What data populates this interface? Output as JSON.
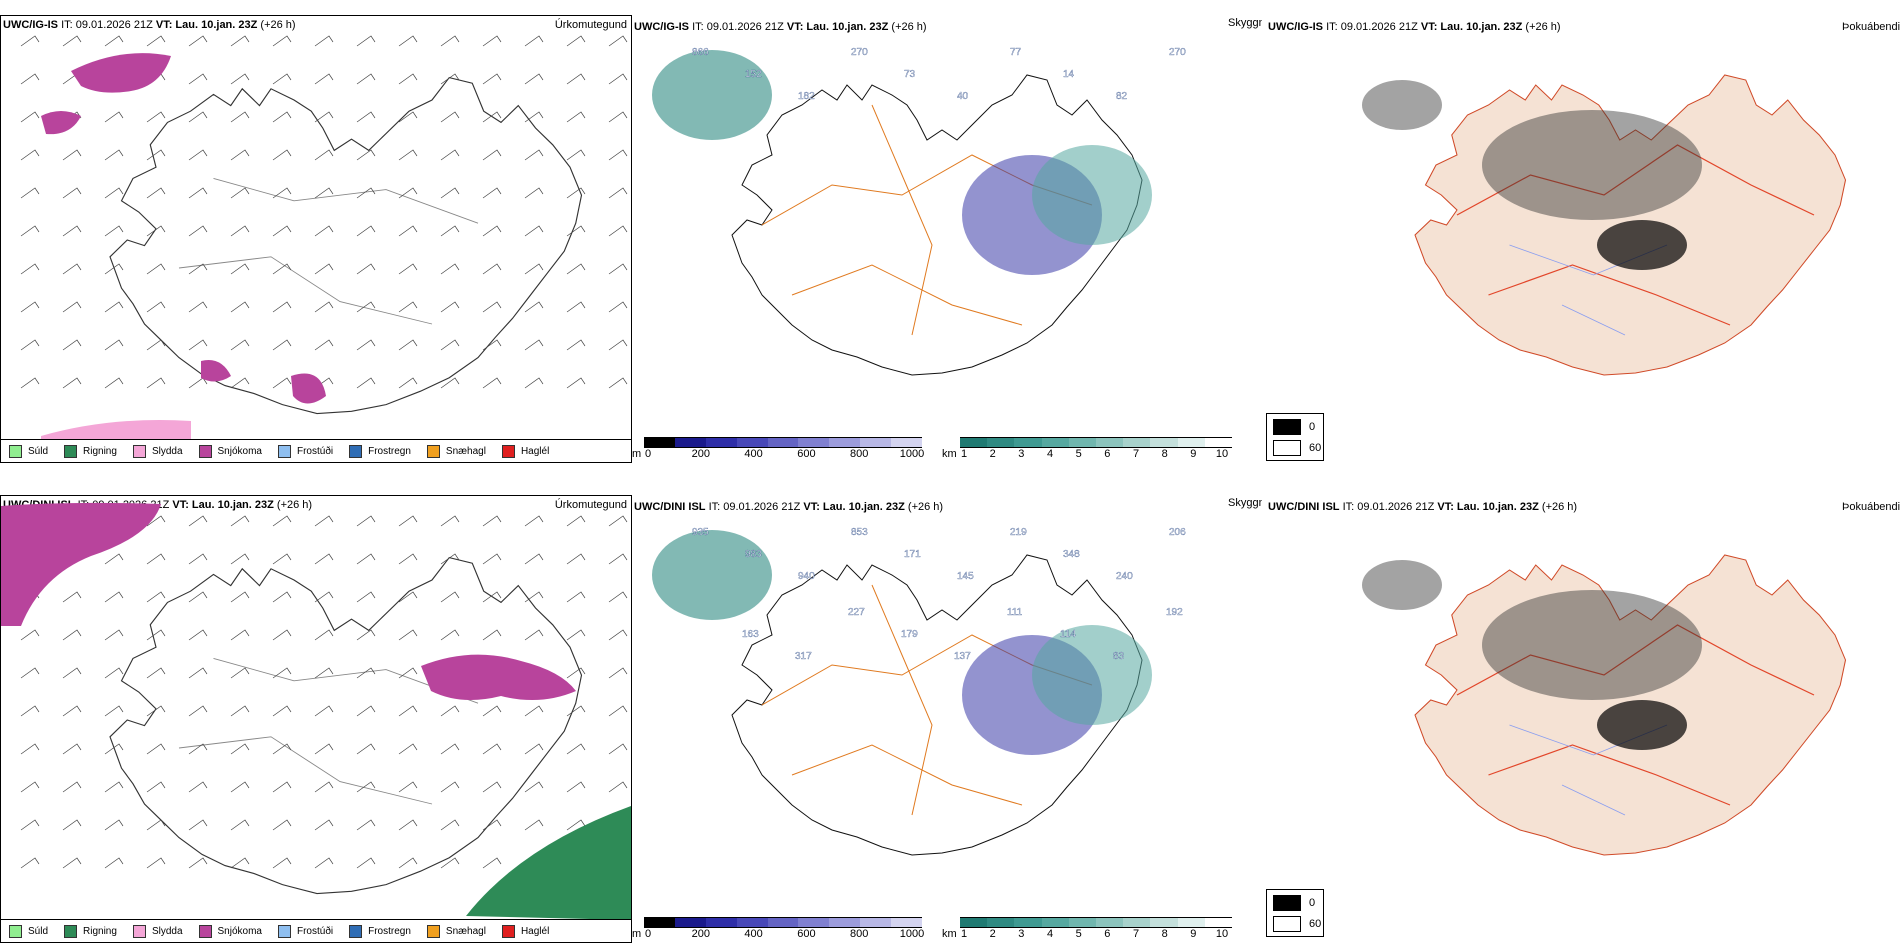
{
  "rows": [
    {
      "model": "UWC/IG-IS",
      "it": "IT: 09.01.2026 21Z",
      "vt_label": "VT:",
      "vt_value": "Lau. 10.jan. 23Z",
      "lead": "(+26 h)"
    },
    {
      "model": "UWC/DINI ISL",
      "it": "IT: 09.01.2026 21Z",
      "vt_label": "VT:",
      "vt_value": "Lau. 10.jan. 23Z",
      "lead": "(+26 h)"
    }
  ],
  "titles": {
    "precip": "Úrkomutegund",
    "visibility": "Skyggni",
    "fog": "Þokuábendi"
  },
  "precip_legend": [
    {
      "label": "Súld",
      "color": "#90ee90"
    },
    {
      "label": "Rigning",
      "color": "#2e8b57"
    },
    {
      "label": "Slydda",
      "color": "#f4a6d7"
    },
    {
      "label": "Snjókoma",
      "color": "#b8449c"
    },
    {
      "label": "Frostúði",
      "color": "#8fbff0"
    },
    {
      "label": "Frostregn",
      "color": "#2f6db5"
    },
    {
      "label": "Snæhagl",
      "color": "#f0a020"
    },
    {
      "label": "Haglél",
      "color": "#e02020"
    }
  ],
  "ceiling_bar": {
    "unit": "m",
    "ticks": [
      "0",
      "200",
      "400",
      "600",
      "800",
      "1000"
    ],
    "colors": [
      "#000000",
      "#1a1a8c",
      "#2e2ea8",
      "#4848b8",
      "#6464c4",
      "#8080d0",
      "#9c9cdc",
      "#b8b8e6",
      "#d4d4f0"
    ]
  },
  "visibility_bar": {
    "unit": "km",
    "ticks": [
      "1",
      "2",
      "3",
      "4",
      "5",
      "6",
      "7",
      "8",
      "9",
      "10"
    ],
    "colors": [
      "#1f7a72",
      "#2f8a82",
      "#3f9a92",
      "#56a8a0",
      "#70b6ae",
      "#8cc4bd",
      "#a8d2cc",
      "#c4e0dc",
      "#e0f0ee",
      "#ffffff"
    ]
  },
  "fog_legend": [
    {
      "label": "0",
      "color": "#000000"
    },
    {
      "label": "60",
      "color": "#ffffff"
    }
  ],
  "top_vis_labels": [
    "866",
    "152",
    "182",
    "270",
    "73",
    "40",
    "77",
    "14",
    "82",
    "270"
  ],
  "bottom_vis_labels": [
    "935",
    "983",
    "940",
    "853",
    "171",
    "145",
    "219",
    "348",
    "240",
    "206",
    "163",
    "317",
    "227",
    "179",
    "137",
    "111",
    "114",
    "83",
    "192"
  ]
}
